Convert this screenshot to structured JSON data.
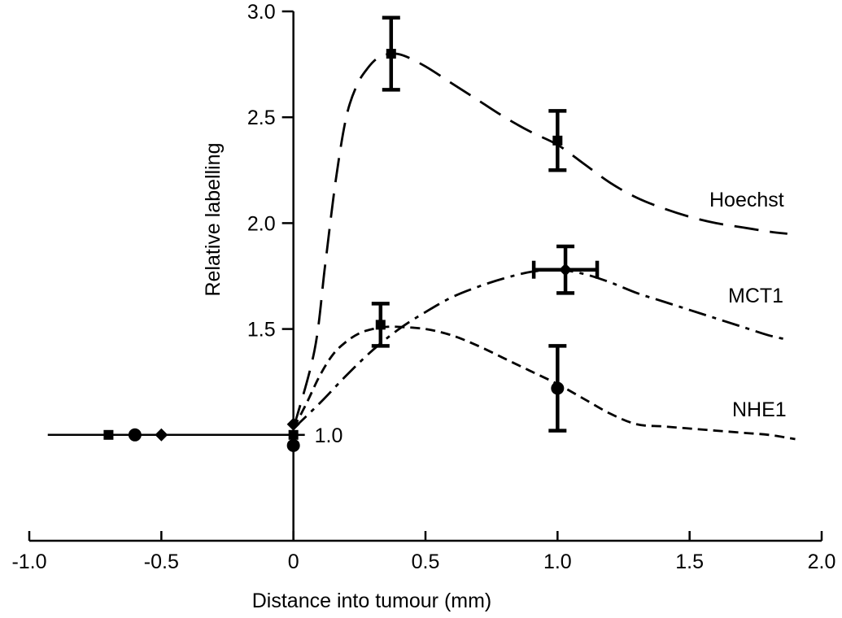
{
  "chart_data": {
    "type": "line",
    "title": "",
    "xlabel": "Distance into tumour (mm)",
    "ylabel": "Relative labelling",
    "xlim": [
      -1.0,
      2.0
    ],
    "ylim": [
      0.5,
      3.0
    ],
    "xticks": [
      -1.0,
      -0.5,
      0,
      0.5,
      1.0,
      1.5,
      2.0
    ],
    "xtick_labels": [
      "-1.0",
      "-0.5",
      "0",
      "0.5",
      "1.0",
      "1.5",
      "2.0"
    ],
    "yticks": [
      1.0,
      1.5,
      2.0,
      2.5,
      3.0
    ],
    "ytick_labels": [
      "1.0",
      "1.5",
      "2.0",
      "2.5",
      "3.0"
    ],
    "baseline": {
      "x": [
        -0.93,
        0.0
      ],
      "y": [
        1.0,
        1.0
      ]
    },
    "baseline_markers": [
      {
        "x": -0.7,
        "y": 1.0,
        "marker": "square"
      },
      {
        "x": -0.6,
        "y": 1.0,
        "marker": "circle"
      },
      {
        "x": -0.5,
        "y": 1.0,
        "marker": "diamond"
      },
      {
        "x": 0.0,
        "y": 1.05,
        "marker": "diamond"
      },
      {
        "x": 0.0,
        "y": 1.0,
        "marker": "square"
      },
      {
        "x": 0.0,
        "y": 0.95,
        "marker": "circle"
      }
    ],
    "series": [
      {
        "name": "Hoechst",
        "label": "Hoechst",
        "dash": "dashed-long",
        "curve": {
          "x": [
            0.0,
            0.08,
            0.12,
            0.16,
            0.2,
            0.24,
            0.28,
            0.32,
            0.37,
            0.42,
            0.5,
            0.6,
            0.7,
            0.8,
            0.9,
            1.0,
            1.1,
            1.2,
            1.3,
            1.4,
            1.5,
            1.6,
            1.7,
            1.8,
            1.87
          ],
          "y": [
            1.03,
            1.4,
            1.8,
            2.2,
            2.5,
            2.65,
            2.73,
            2.78,
            2.8,
            2.79,
            2.74,
            2.66,
            2.58,
            2.5,
            2.43,
            2.37,
            2.28,
            2.19,
            2.12,
            2.07,
            2.03,
            2.0,
            1.98,
            1.96,
            1.95
          ]
        },
        "points": [
          {
            "x": 0.37,
            "y": 2.8,
            "yerr": 0.17,
            "marker": "square"
          },
          {
            "x": 1.0,
            "y": 2.39,
            "yerr": 0.14,
            "marker": "square"
          }
        ]
      },
      {
        "name": "MCT1",
        "label": "MCT1",
        "dash": "dash-dot",
        "curve": {
          "x": [
            0.0,
            0.1,
            0.2,
            0.3,
            0.4,
            0.5,
            0.6,
            0.7,
            0.8,
            0.9,
            1.0,
            1.1,
            1.2,
            1.3,
            1.4,
            1.5,
            1.6,
            1.7,
            1.8,
            1.87
          ],
          "y": [
            1.03,
            1.15,
            1.28,
            1.4,
            1.5,
            1.58,
            1.65,
            1.7,
            1.74,
            1.77,
            1.78,
            1.76,
            1.72,
            1.67,
            1.63,
            1.59,
            1.55,
            1.51,
            1.47,
            1.45
          ]
        },
        "points": [
          {
            "x": 1.03,
            "y": 1.78,
            "yerr": 0.11,
            "xerr": 0.12,
            "marker": "diamond"
          }
        ]
      },
      {
        "name": "NHE1",
        "label": "NHE1",
        "dash": "dashed-short",
        "curve": {
          "x": [
            0.0,
            0.05,
            0.1,
            0.15,
            0.2,
            0.25,
            0.3,
            0.35,
            0.4,
            0.5,
            0.6,
            0.7,
            0.8,
            0.9,
            1.0,
            1.1,
            1.2,
            1.3,
            1.4,
            1.5,
            1.6,
            1.7,
            1.8,
            1.9
          ],
          "y": [
            1.03,
            1.15,
            1.28,
            1.38,
            1.44,
            1.48,
            1.5,
            1.51,
            1.51,
            1.5,
            1.47,
            1.42,
            1.36,
            1.3,
            1.24,
            1.17,
            1.1,
            1.05,
            1.04,
            1.03,
            1.02,
            1.01,
            1.0,
            0.98
          ]
        },
        "points": [
          {
            "x": 0.33,
            "y": 1.52,
            "yerr": 0.1,
            "marker": "square"
          },
          {
            "x": 1.0,
            "y": 1.22,
            "yerr": 0.2,
            "marker": "circle"
          }
        ]
      }
    ]
  }
}
